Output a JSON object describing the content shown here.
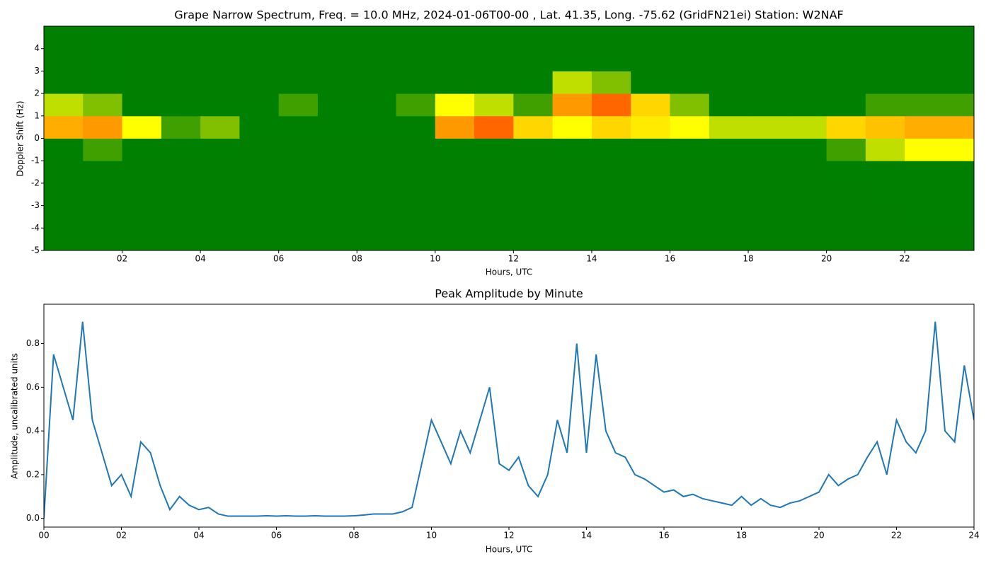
{
  "chart_data": [
    {
      "type": "heatmap",
      "title": "Grape Narrow Spectrum, Freq. = 10.0 MHz, 2024-01-06T00-00 , Lat.  41.35, Long. -75.62 (GridFN21ei) Station: W2NAF",
      "xlabel": "Hours, UTC",
      "ylabel": "Doppler Shift (Hz)",
      "xlim": [
        0,
        23.77
      ],
      "ylim": [
        -5,
        5
      ],
      "xticks": [
        {
          "value": 2,
          "label": "02"
        },
        {
          "value": 4,
          "label": "04"
        },
        {
          "value": 6,
          "label": "06"
        },
        {
          "value": 8,
          "label": "08"
        },
        {
          "value": 10,
          "label": "10"
        },
        {
          "value": 12,
          "label": "12"
        },
        {
          "value": 14,
          "label": "14"
        },
        {
          "value": 16,
          "label": "16"
        },
        {
          "value": 18,
          "label": "18"
        },
        {
          "value": 20,
          "label": "20"
        },
        {
          "value": 22,
          "label": "22"
        }
      ],
      "yticks": [
        -5,
        -4,
        -3,
        -2,
        -1,
        0,
        1,
        2,
        3,
        4
      ],
      "colorscale": [
        [
          0,
          "#007f00"
        ],
        [
          0.4,
          "#008000"
        ],
        [
          0.6,
          "#ffff00"
        ],
        [
          0.85,
          "#ff9900"
        ],
        [
          1,
          "#ff0000"
        ]
      ],
      "x": [
        0,
        1,
        2,
        3,
        4,
        5,
        6,
        7,
        8,
        9,
        10,
        11,
        12,
        13,
        14,
        15,
        16,
        17,
        18,
        19,
        20,
        21,
        22,
        23
      ],
      "y": [
        -5,
        -4,
        -3,
        -2,
        -1,
        0,
        1,
        2,
        3,
        4
      ],
      "z": [
        [
          0.1,
          0.15,
          0.1,
          0.05,
          0.05,
          0.05,
          0.05,
          0.05,
          0.05,
          0.05,
          0.15,
          0.15,
          0.1,
          0.05,
          0.05,
          0.05,
          0.05,
          0.05,
          0.05,
          0.05,
          0.1,
          0.15,
          0.15,
          0.15
        ],
        [
          0.1,
          0.15,
          0.1,
          0.05,
          0.05,
          0.05,
          0.05,
          0.05,
          0.05,
          0.05,
          0.15,
          0.15,
          0.1,
          0.05,
          0.05,
          0.05,
          0.05,
          0.05,
          0.05,
          0.05,
          0.1,
          0.15,
          0.2,
          0.2
        ],
        [
          0.1,
          0.15,
          0.1,
          0.05,
          0.05,
          0.05,
          0.05,
          0.05,
          0.05,
          0.05,
          0.15,
          0.15,
          0.1,
          0.05,
          0.05,
          0.05,
          0.05,
          0.05,
          0.05,
          0.05,
          0.15,
          0.2,
          0.25,
          0.3
        ],
        [
          0.15,
          0.15,
          0.1,
          0.05,
          0.05,
          0.05,
          0.05,
          0.05,
          0.05,
          0.05,
          0.15,
          0.15,
          0.1,
          0.05,
          0.1,
          0.1,
          0.1,
          0.1,
          0.05,
          0.1,
          0.2,
          0.3,
          0.35,
          0.4
        ],
        [
          0.4,
          0.45,
          0.3,
          0.2,
          0.3,
          0.1,
          0.05,
          0.05,
          0.05,
          0.1,
          0.2,
          0.2,
          0.15,
          0.2,
          0.3,
          0.35,
          0.4,
          0.35,
          0.3,
          0.3,
          0.45,
          0.55,
          0.6,
          0.6
        ],
        [
          0.8,
          0.85,
          0.6,
          0.45,
          0.5,
          0.3,
          0.35,
          0.35,
          0.35,
          0.4,
          0.85,
          0.9,
          0.7,
          0.6,
          0.7,
          0.65,
          0.6,
          0.55,
          0.55,
          0.55,
          0.7,
          0.75,
          0.8,
          0.8
        ],
        [
          0.55,
          0.5,
          0.3,
          0.2,
          0.35,
          0.2,
          0.45,
          0.35,
          0.4,
          0.45,
          0.6,
          0.55,
          0.45,
          0.85,
          0.9,
          0.7,
          0.5,
          0.4,
          0.35,
          0.35,
          0.4,
          0.45,
          0.45,
          0.45
        ],
        [
          0.15,
          0.2,
          0.1,
          0.05,
          0.05,
          0.05,
          0.05,
          0.05,
          0.05,
          0.05,
          0.15,
          0.15,
          0.3,
          0.55,
          0.5,
          0.35,
          0.2,
          0.1,
          0.05,
          0.05,
          0.1,
          0.15,
          0.15,
          0.15
        ],
        [
          0.15,
          0.2,
          0.1,
          0.05,
          0.05,
          0.05,
          0.05,
          0.05,
          0.05,
          0.05,
          0.15,
          0.15,
          0.15,
          0.35,
          0.3,
          0.15,
          0.1,
          0.05,
          0.05,
          0.05,
          0.1,
          0.1,
          0.1,
          0.1
        ],
        [
          0.15,
          0.2,
          0.1,
          0.05,
          0.05,
          0.05,
          0.05,
          0.05,
          0.05,
          0.05,
          0.15,
          0.15,
          0.1,
          0.1,
          0.15,
          0.15,
          0.15,
          0.15,
          0.05,
          0.05,
          0.1,
          0.1,
          0.1,
          0.1
        ]
      ]
    },
    {
      "type": "line",
      "title": "Peak Amplitude by Minute",
      "xlabel": "Hours, UTC",
      "ylabel": "Amplitude, uncalibrated units",
      "xlim": [
        0,
        24
      ],
      "ylim": [
        -0.04,
        0.98
      ],
      "xticks": [
        {
          "value": 0,
          "label": "00"
        },
        {
          "value": 2,
          "label": "02"
        },
        {
          "value": 4,
          "label": "04"
        },
        {
          "value": 6,
          "label": "06"
        },
        {
          "value": 8,
          "label": "08"
        },
        {
          "value": 10,
          "label": "10"
        },
        {
          "value": 12,
          "label": "12"
        },
        {
          "value": 14,
          "label": "14"
        },
        {
          "value": 16,
          "label": "16"
        },
        {
          "value": 18,
          "label": "18"
        },
        {
          "value": 20,
          "label": "20"
        },
        {
          "value": 22,
          "label": "22"
        },
        {
          "value": 24,
          "label": "24"
        }
      ],
      "yticks": [
        {
          "value": 0,
          "label": "0.0"
        },
        0.2,
        0.4,
        0.6,
        0.8
      ],
      "color": "#1f77b4",
      "x": [
        0,
        0.25,
        0.5,
        0.75,
        1,
        1.25,
        1.5,
        1.75,
        2,
        2.25,
        2.5,
        2.75,
        3,
        3.25,
        3.5,
        3.75,
        4,
        4.25,
        4.5,
        4.75,
        5,
        5.25,
        5.5,
        5.75,
        6,
        6.25,
        6.5,
        6.75,
        7,
        7.25,
        7.5,
        7.75,
        8,
        8.25,
        8.5,
        8.75,
        9,
        9.25,
        9.5,
        9.75,
        10,
        10.25,
        10.5,
        10.75,
        11,
        11.25,
        11.5,
        11.75,
        12,
        12.25,
        12.5,
        12.75,
        13,
        13.25,
        13.5,
        13.75,
        14,
        14.25,
        14.5,
        14.75,
        15,
        15.25,
        15.5,
        15.75,
        16,
        16.25,
        16.5,
        16.75,
        17,
        17.25,
        17.5,
        17.75,
        18,
        18.25,
        18.5,
        18.75,
        19,
        19.25,
        19.5,
        19.75,
        20,
        20.25,
        20.5,
        20.75,
        21,
        21.25,
        21.5,
        21.75,
        22,
        22.25,
        22.5,
        22.75,
        23,
        23.25,
        23.5,
        23.75,
        24
      ],
      "values": [
        0,
        0.75,
        0.6,
        0.45,
        0.9,
        0.45,
        0.3,
        0.15,
        0.2,
        0.1,
        0.35,
        0.3,
        0.15,
        0.04,
        0.1,
        0.06,
        0.04,
        0.05,
        0.02,
        0.01,
        0.01,
        0.01,
        0.01,
        0.012,
        0.01,
        0.012,
        0.01,
        0.01,
        0.012,
        0.01,
        0.01,
        0.01,
        0.012,
        0.015,
        0.02,
        0.02,
        0.02,
        0.03,
        0.05,
        0.25,
        0.45,
        0.35,
        0.25,
        0.4,
        0.3,
        0.45,
        0.6,
        0.25,
        0.22,
        0.28,
        0.15,
        0.1,
        0.2,
        0.45,
        0.3,
        0.8,
        0.3,
        0.75,
        0.4,
        0.3,
        0.28,
        0.2,
        0.18,
        0.15,
        0.12,
        0.13,
        0.1,
        0.11,
        0.09,
        0.08,
        0.07,
        0.06,
        0.1,
        0.06,
        0.09,
        0.06,
        0.05,
        0.07,
        0.08,
        0.1,
        0.12,
        0.2,
        0.15,
        0.18,
        0.2,
        0.28,
        0.35,
        0.2,
        0.45,
        0.35,
        0.3,
        0.4,
        0.9,
        0.4,
        0.35,
        0.7,
        0.45
      ]
    }
  ]
}
